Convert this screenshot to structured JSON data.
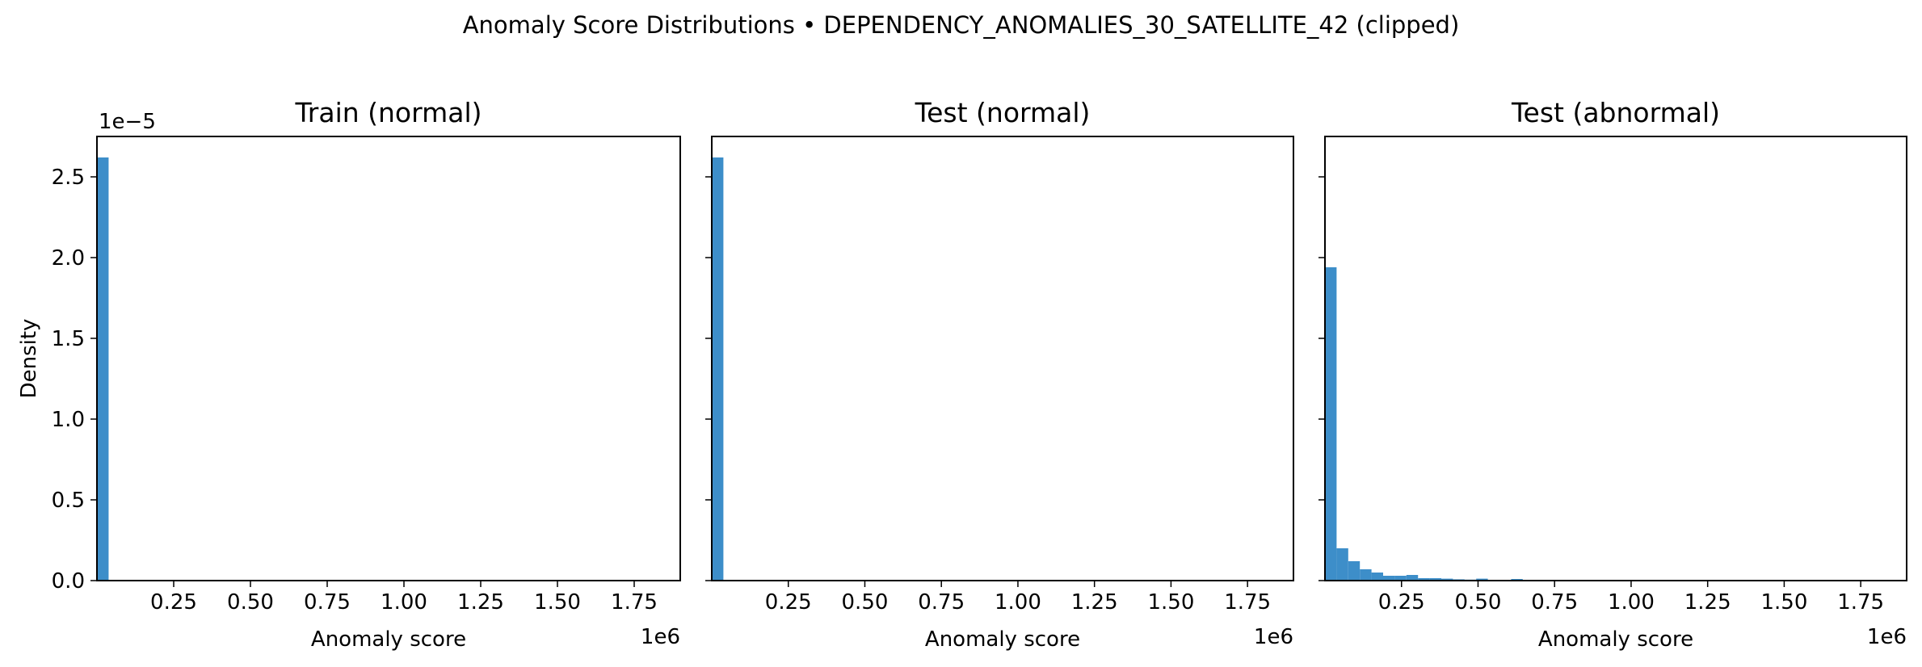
{
  "figure": {
    "suptitle": "Anomaly Score Distributions • DEPENDENCY_ANOMALIES_30_SATELLITE_42 (clipped)",
    "bar_color": "#3d8ec9"
  },
  "chart_data": [
    {
      "type": "bar",
      "title": "Train (normal)",
      "xlabel": "Anomaly score",
      "ylabel": "Density",
      "x_offset_label": "1e6",
      "y_offset_label": "1e−5",
      "xlim": [
        0,
        1.9
      ],
      "ylim": [
        0,
        2.75
      ],
      "x_scale": "1e6",
      "y_scale": "1e-5",
      "x_ticks": [
        0.25,
        0.5,
        0.75,
        1.0,
        1.25,
        1.5,
        1.75
      ],
      "x_tick_labels": [
        "0.25",
        "0.50",
        "0.75",
        "1.00",
        "1.25",
        "1.50",
        "1.75"
      ],
      "y_ticks": [
        0,
        0.5,
        1.0,
        1.5,
        2.0,
        2.5
      ],
      "y_tick_labels": [
        "0.0",
        "0.5",
        "1.0",
        "1.5",
        "2.0",
        "2.5"
      ],
      "bin_width": 0.038,
      "bin_starts": [
        0
      ],
      "values": [
        2.62
      ],
      "grid": false
    },
    {
      "type": "bar",
      "title": "Test (normal)",
      "xlabel": "Anomaly score",
      "ylabel": "",
      "x_offset_label": "1e6",
      "xlim": [
        0,
        1.9
      ],
      "ylim": [
        0,
        2.75
      ],
      "x_scale": "1e6",
      "y_scale": "1e-5",
      "x_ticks": [
        0.25,
        0.5,
        0.75,
        1.0,
        1.25,
        1.5,
        1.75
      ],
      "x_tick_labels": [
        "0.25",
        "0.50",
        "0.75",
        "1.00",
        "1.25",
        "1.50",
        "1.75"
      ],
      "y_ticks": [
        0,
        0.5,
        1.0,
        1.5,
        2.0,
        2.5
      ],
      "bin_width": 0.038,
      "bin_starts": [
        0
      ],
      "values": [
        2.62
      ],
      "grid": false
    },
    {
      "type": "bar",
      "title": "Test (abnormal)",
      "xlabel": "Anomaly score",
      "ylabel": "",
      "x_offset_label": "1e6",
      "xlim": [
        0,
        1.9
      ],
      "ylim": [
        0,
        2.75
      ],
      "x_scale": "1e6",
      "y_scale": "1e-5",
      "x_ticks": [
        0.25,
        0.5,
        0.75,
        1.0,
        1.25,
        1.5,
        1.75
      ],
      "x_tick_labels": [
        "0.25",
        "0.50",
        "0.75",
        "1.00",
        "1.25",
        "1.50",
        "1.75"
      ],
      "y_ticks": [
        0,
        0.5,
        1.0,
        1.5,
        2.0,
        2.5
      ],
      "bin_width": 0.038,
      "bin_starts": [
        0,
        0.038,
        0.076,
        0.114,
        0.152,
        0.19,
        0.228,
        0.266,
        0.304,
        0.342,
        0.38,
        0.418,
        0.456,
        0.494,
        0.532,
        0.57,
        0.608,
        0.646,
        0.684,
        0.722
      ],
      "values": [
        1.94,
        0.2,
        0.12,
        0.07,
        0.05,
        0.03,
        0.03,
        0.035,
        0.015,
        0.015,
        0.012,
        0.008,
        0.006,
        0.012,
        0.004,
        0.004,
        0.01,
        0.004,
        0.003,
        0.002
      ],
      "grid": false
    }
  ]
}
